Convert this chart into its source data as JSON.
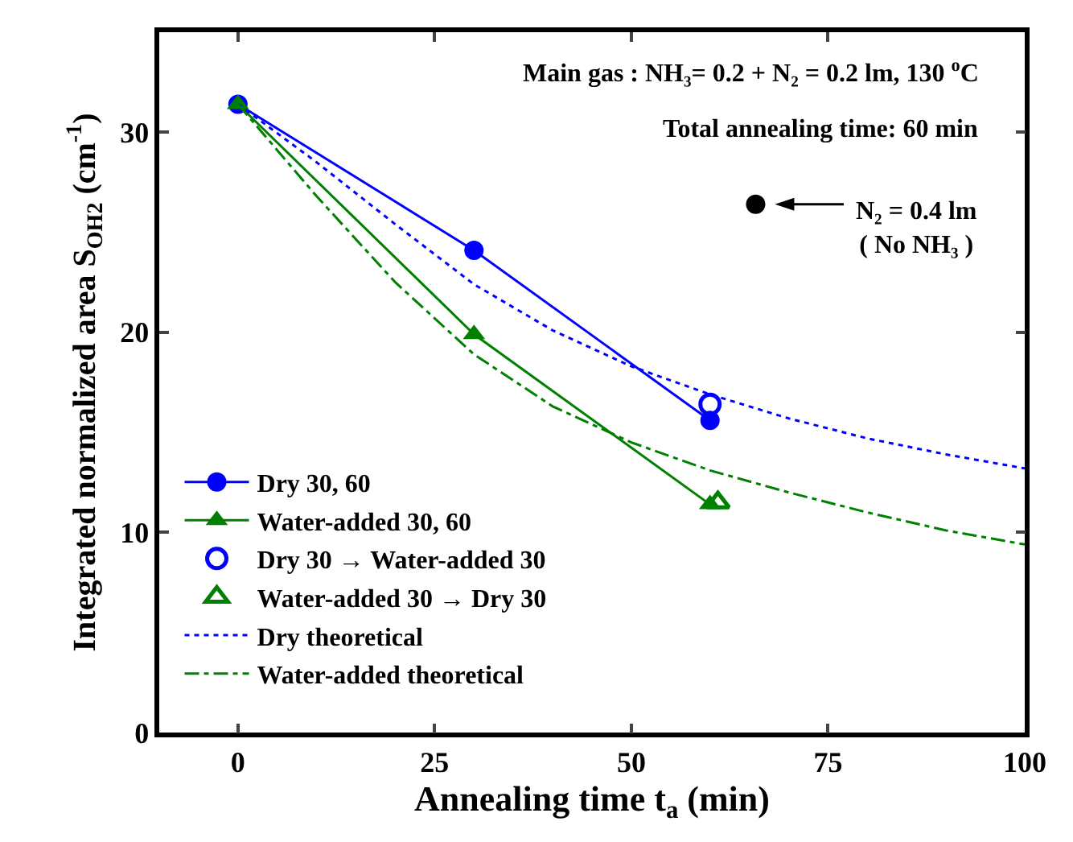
{
  "chart_data": {
    "type": "line",
    "xlabel": "Annealing time t$_{a}$ (min)",
    "ylabel": "Integrated normalized area S$_{OH2}$ (cm$^{-1}$)",
    "xlim": [
      -10,
      100
    ],
    "xticks": [
      0,
      25,
      50,
      75,
      100
    ],
    "ylim": [
      0,
      35
    ],
    "yticks": [
      0,
      10,
      20,
      30
    ],
    "grid": false,
    "legend": "bottom left",
    "annotations": [
      "Main gas : NH₃= 0.2 + N₂ = 0.2 lm, 130 $^{o}$C",
      "Total annealing time: 60 min",
      "N₂ = 0.4 lm\n( No NH₃ )"
    ],
    "series": [
      {
        "name": "Dry 30, 60",
        "color": "#0000ff",
        "marker": "circle",
        "line_style": "solid",
        "x": [
          0,
          30,
          60
        ],
        "values": [
          31.4,
          24.1,
          15.6
        ]
      },
      {
        "name": "Water-added 30, 60",
        "color": "#008000",
        "marker": "triangle",
        "line_style": "solid",
        "x": [
          0,
          30,
          60
        ],
        "values": [
          31.4,
          19.9,
          11.4
        ]
      },
      {
        "name": "Dry 30 → Water-added 30",
        "type": "scatter",
        "color": "#0000ff",
        "marker": "circle-open",
        "x": [
          60
        ],
        "values": [
          16.4
        ]
      },
      {
        "name": "Water-added 30 → Dry 30",
        "type": "scatter",
        "color": "#008000",
        "marker": "triangle-open",
        "x": [
          61
        ],
        "values": [
          11.5
        ]
      },
      {
        "name": "Dry theoretical",
        "color": "#0000ff",
        "marker": "none",
        "line_style": "dotted",
        "x": [
          0,
          10,
          20,
          30,
          40,
          50,
          60,
          70,
          80,
          90,
          100
        ],
        "values": [
          31.4,
          28.5,
          25.4,
          22.4,
          20.1,
          18.3,
          16.9,
          15.7,
          14.7,
          13.9,
          13.2
        ]
      },
      {
        "name": "Water-added theoretical",
        "color": "#008000",
        "marker": "none",
        "line_style": "dashed",
        "x": [
          0,
          10,
          20,
          30,
          40,
          50,
          60,
          70,
          80,
          90,
          100
        ],
        "values": [
          31.4,
          26.8,
          22.5,
          18.9,
          16.3,
          14.5,
          13.1,
          12.0,
          11.0,
          10.1,
          9.4
        ]
      },
      {
        "type": "scatter",
        "color": "#000000",
        "marker": "circle",
        "x": [
          65.8
        ],
        "values": [
          26.4
        ]
      }
    ]
  }
}
